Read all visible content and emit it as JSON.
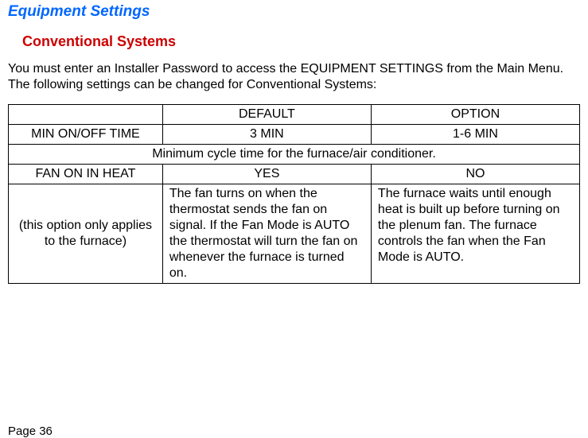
{
  "heading1": "Equipment Settings",
  "heading2": "Conventional Systems",
  "intro": "You must enter an Installer Password to access the EQUIPMENT SETTINGS from the Main Menu. The following settings can be changed for Conventional Systems:",
  "table": {
    "header": {
      "label": "",
      "default": "DEFAULT",
      "option": "OPTION"
    },
    "row_min": {
      "label": "MIN ON/OFF TIME",
      "default": "3 MIN",
      "option": "1-6 MIN"
    },
    "row_min_desc": "Minimum cycle time for the furnace/air conditioner.",
    "row_fan": {
      "label": "FAN ON IN HEAT",
      "default": "YES",
      "option": "NO"
    },
    "row_fan_note": "(this option only applies to the furnace)",
    "row_fan_default_desc": "The fan turns on when the thermostat sends the fan on signal.  If the Fan Mode is AUTO the thermostat will turn the fan on whenever the furnace is turned on.",
    "row_fan_option_desc": "The furnace waits until enough heat is built up before turning on the plenum fan. The furnace controls the fan when the Fan Mode is AUTO."
  },
  "page_number": "Page 36",
  "colors": {
    "heading1": "#0066ff",
    "heading2": "#cc0000",
    "text": "#000000",
    "border": "#000000",
    "background": "#ffffff"
  },
  "fonts": {
    "family": "Arial, Helvetica, sans-serif",
    "heading1_size": 19,
    "heading2_size": 18,
    "body_size": 16
  }
}
